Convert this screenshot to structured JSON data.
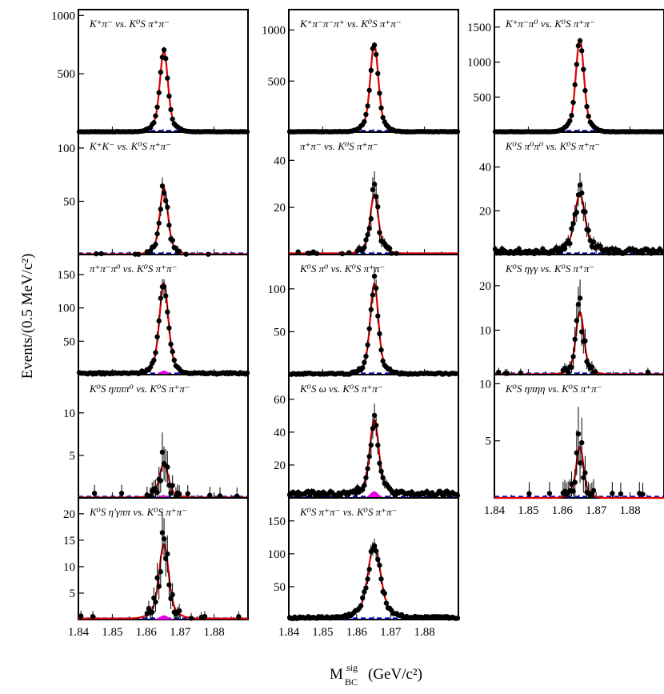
{
  "figure": {
    "ylabel": "Events/(0.5 MeV/c²)",
    "xlabel_main": "M",
    "xlabel_sup": "sig",
    "xlabel_sub": "BC",
    "xlabel_unit": "(GeV/c²)"
  },
  "chart_data": [
    {
      "type": "line",
      "col": 0,
      "row": 0,
      "label": "K⁺π⁻ vs. K⁰S π⁺π⁻",
      "ylim": [
        0,
        1050
      ],
      "yticks": [
        500,
        1000
      ],
      "peak": 690,
      "bkg": 3,
      "sigma": 0.0011,
      "signal": 0
    },
    {
      "type": "line",
      "col": 0,
      "row": 1,
      "label": "K⁺K⁻ vs. K⁰S π⁺π⁻",
      "ylim": [
        0,
        115
      ],
      "yticks": [
        50,
        100
      ],
      "peak": 62,
      "bkg": 0.4,
      "sigma": 0.0011,
      "signal": 0
    },
    {
      "type": "line",
      "col": 0,
      "row": 2,
      "label": "π⁺π⁻π⁰ vs. K⁰S π⁺π⁻",
      "ylim": [
        0,
        180
      ],
      "yticks": [
        50,
        100,
        150
      ],
      "peak": 135,
      "bkg": 2,
      "sigma": 0.0012,
      "signal": 6
    },
    {
      "type": "line",
      "col": 0,
      "row": 3,
      "label": "K⁰S ηπππ⁰ vs. K⁰S π⁺π⁻",
      "ylim": [
        0,
        14.5
      ],
      "yticks": [
        5,
        10
      ],
      "peak": 4,
      "bkg": 0.05,
      "sigma": 0.0012,
      "signal": 0.3
    },
    {
      "type": "line",
      "col": 0,
      "row": 4,
      "label": "K⁰S η′γππ vs. K⁰S π⁺π⁻",
      "ylim": [
        0,
        23
      ],
      "yticks": [
        5,
        10,
        15,
        20
      ],
      "peak": 14,
      "bkg": 0.2,
      "sigma": 0.0013,
      "signal": 0.8
    },
    {
      "type": "line",
      "col": 1,
      "row": 0,
      "label": "K⁺π⁻π⁻π⁺ vs. K⁰S π⁺π⁻",
      "ylim": [
        0,
        1200
      ],
      "yticks": [
        500,
        1000
      ],
      "peak": 850,
      "bkg": 4,
      "sigma": 0.0011,
      "signal": 0
    },
    {
      "type": "line",
      "col": 1,
      "row": 1,
      "label": "π⁺π⁻ vs. K⁰S π⁺π⁻",
      "ylim": [
        0,
        52
      ],
      "yticks": [
        20,
        40
      ],
      "peak": 25,
      "bkg": 0.5,
      "sigma": 0.0011,
      "signal": 0
    },
    {
      "type": "line",
      "col": 1,
      "row": 2,
      "label": "K⁰S π⁰ vs. K⁰S π⁺π⁻",
      "ylim": [
        0,
        140
      ],
      "yticks": [
        50,
        100
      ],
      "peak": 105,
      "bkg": 1,
      "sigma": 0.0011,
      "signal": 0
    },
    {
      "type": "line",
      "col": 1,
      "row": 3,
      "label": "K⁰S ω vs. K⁰S π⁺π⁻",
      "ylim": [
        0,
        75
      ],
      "yticks": [
        20,
        40,
        60
      ],
      "peak": 45,
      "bkg": 2.5,
      "sigma": 0.0012,
      "signal": 4
    },
    {
      "type": "line",
      "col": 1,
      "row": 4,
      "label": "K⁰S π⁺π⁻ vs. K⁰S π⁺π⁻",
      "ylim": [
        0,
        185
      ],
      "yticks": [
        50,
        100,
        150
      ],
      "peak": 110,
      "bkg": 3,
      "sigma": 0.0017,
      "signal": 0
    },
    {
      "type": "line",
      "col": 2,
      "row": 0,
      "label": "K⁺π⁻π⁰ vs. K⁰S π⁺π⁻",
      "ylim": [
        0,
        1750
      ],
      "yticks": [
        500,
        1000,
        1500
      ],
      "peak": 1320,
      "bkg": 5,
      "sigma": 0.0011,
      "signal": 0
    },
    {
      "type": "line",
      "col": 2,
      "row": 1,
      "label": "K⁰S π⁰π⁰ vs. K⁰S π⁺π⁻",
      "ylim": [
        0,
        56
      ],
      "yticks": [
        20,
        40
      ],
      "peak": 26,
      "bkg": 1.5,
      "sigma": 0.0014,
      "signal": 0
    },
    {
      "type": "line",
      "col": 2,
      "row": 2,
      "label": "K⁰S ηγγ vs. K⁰S π⁺π⁻",
      "ylim": [
        0,
        27
      ],
      "yticks": [
        10,
        20
      ],
      "peak": 14,
      "bkg": 0.1,
      "sigma": 0.0011,
      "signal": 0
    },
    {
      "type": "line",
      "col": 2,
      "row": 3,
      "label": "K⁰S ηπηη vs. K⁰S π⁺π⁻",
      "ylim": [
        0,
        10.8
      ],
      "yticks": [
        5,
        10
      ],
      "peak": 4.5,
      "bkg": 0,
      "sigma": 0.001,
      "signal": 0
    }
  ],
  "xaxis": {
    "range": [
      1.84,
      1.89
    ],
    "ticks": [
      "1.84",
      "1.85",
      "1.86",
      "1.87",
      "1.88"
    ]
  },
  "style": {
    "fit": "#e00000",
    "points": "#000000",
    "signal_bkg": "#ee00ee",
    "comb_bkg": "#0000cc"
  }
}
